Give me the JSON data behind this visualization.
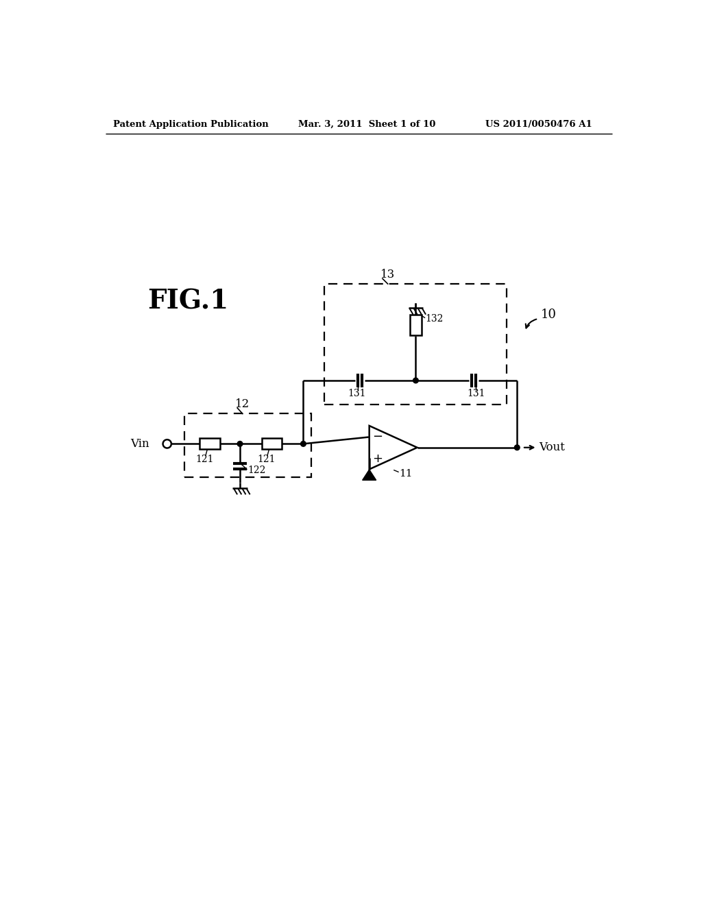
{
  "bg_color": "#ffffff",
  "line_color": "#000000",
  "header_text": "Patent Application Publication",
  "header_date": "Mar. 3, 2011  Sheet 1 of 10",
  "header_patent": "US 2011/0050476 A1",
  "fig_label": "FIG.1",
  "label_10": "10",
  "label_11": "11",
  "label_12": "12",
  "label_13": "13",
  "label_121a": "121",
  "label_121b": "121",
  "label_122": "122",
  "label_131a": "131",
  "label_131b": "131",
  "label_132": "132",
  "label_Vin": "Vin",
  "label_Vout": "Vout"
}
